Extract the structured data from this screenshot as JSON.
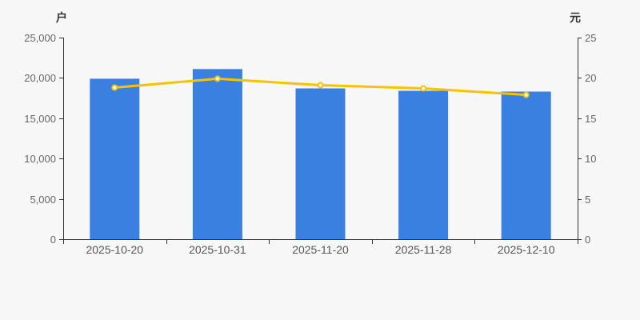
{
  "chart_data": {
    "type": "bar",
    "subtype": "bar-plus-line-dual-axis",
    "title": "",
    "categories": [
      "2025-10-20",
      "2025-10-31",
      "2025-11-20",
      "2025-11-28",
      "2025-12-10"
    ],
    "series": [
      {
        "name": "bar-series",
        "type": "bar",
        "yaxis": "left",
        "values": [
          19900,
          21100,
          18700,
          18400,
          18300
        ]
      },
      {
        "name": "line-series",
        "type": "line",
        "yaxis": "right",
        "values": [
          18.8,
          19.9,
          19.1,
          18.7,
          17.9
        ]
      }
    ],
    "left_axis": {
      "unit": "户",
      "min": 0,
      "max": 25000,
      "tick_labels": [
        "0",
        "5,000",
        "10,000",
        "15,000",
        "20,000",
        "25,000"
      ]
    },
    "right_axis": {
      "unit": "元",
      "min": 0,
      "max": 25,
      "tick_labels": [
        "0",
        "5",
        "10",
        "15",
        "20",
        "25"
      ]
    },
    "grid": false,
    "legend": "none"
  },
  "colors": {
    "background": "#f7f7f7",
    "bar": "#3a80e1",
    "line": "#f7c200",
    "marker_fill": "#ffffff",
    "axis": "#333333",
    "y_tick_label": "#666666",
    "x_tick_label": "#555555",
    "unit_label": "#333333"
  }
}
